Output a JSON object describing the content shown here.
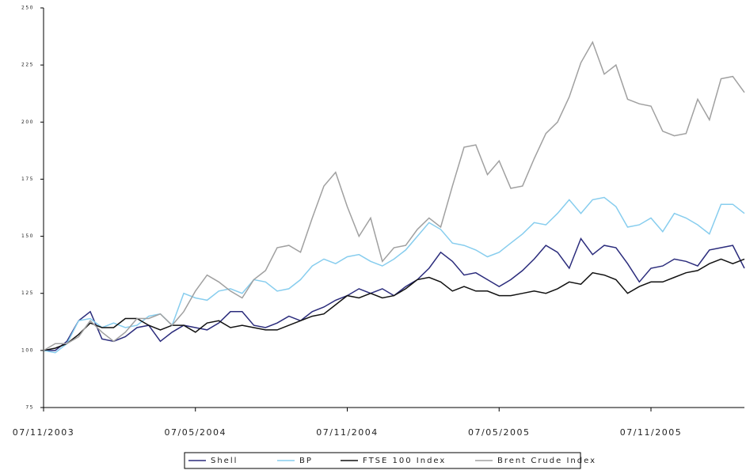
{
  "chart_data": {
    "type": "line",
    "categories": [
      "07/11/2003",
      null,
      null,
      null,
      null,
      null,
      null,
      null,
      null,
      null,
      null,
      null,
      null,
      "07/05/2004",
      null,
      null,
      null,
      null,
      null,
      null,
      null,
      null,
      null,
      null,
      null,
      null,
      "07/11/2004",
      null,
      null,
      null,
      null,
      null,
      null,
      null,
      null,
      null,
      null,
      null,
      null,
      "07/05/2005",
      null,
      null,
      null,
      null,
      null,
      null,
      null,
      null,
      null,
      null,
      null,
      null,
      "07/11/2005",
      null,
      null,
      null,
      null,
      null,
      null,
      null,
      null
    ],
    "series": [
      {
        "name": "Shell",
        "color": "#2b2c7c",
        "values": [
          100,
          100,
          104,
          113,
          117,
          105,
          104,
          106,
          110,
          111,
          104,
          108,
          111,
          110,
          109,
          112,
          117,
          117,
          111,
          110,
          112,
          115,
          113,
          117,
          119,
          122,
          124,
          127,
          125,
          127,
          124,
          128,
          131,
          136,
          143,
          139,
          133,
          134,
          131,
          128,
          131,
          135,
          140,
          146,
          143,
          136,
          149,
          142,
          146,
          145,
          138,
          130,
          136,
          137,
          140,
          139,
          137,
          144,
          145,
          146,
          136
        ]
      },
      {
        "name": "BP",
        "color": "#87cdee",
        "values": [
          100,
          99,
          103,
          113,
          114,
          110,
          112,
          110,
          111,
          115,
          116,
          111,
          125,
          123,
          122,
          126,
          127,
          125,
          131,
          130,
          126,
          127,
          131,
          137,
          140,
          138,
          141,
          142,
          139,
          137,
          140,
          144,
          150,
          156,
          153,
          147,
          146,
          144,
          141,
          143,
          147,
          151,
          156,
          155,
          160,
          166,
          160,
          166,
          167,
          163,
          154,
          155,
          158,
          152,
          160,
          158,
          155,
          151,
          164,
          164,
          160
        ]
      },
      {
        "name": "FTSE 100 Index",
        "color": "#111111",
        "values": [
          100,
          101,
          103,
          107,
          112,
          110,
          110,
          114,
          114,
          111,
          109,
          111,
          111,
          108,
          112,
          113,
          110,
          111,
          110,
          109,
          109,
          111,
          113,
          115,
          116,
          120,
          124,
          123,
          125,
          123,
          124,
          127,
          131,
          132,
          130,
          126,
          128,
          126,
          126,
          124,
          124,
          125,
          126,
          125,
          127,
          130,
          129,
          134,
          133,
          131,
          125,
          128,
          130,
          130,
          132,
          134,
          135,
          138,
          140,
          138,
          140
        ]
      },
      {
        "name": "Brent Crude Index",
        "color": "#a0a0a0",
        "values": [
          100,
          103,
          103,
          106,
          113,
          108,
          104,
          108,
          114,
          114,
          116,
          111,
          117,
          126,
          133,
          130,
          126,
          123,
          131,
          135,
          145,
          146,
          143,
          158,
          172,
          178,
          163,
          150,
          158,
          139,
          145,
          146,
          153,
          158,
          154,
          172,
          189,
          190,
          177,
          183,
          171,
          172,
          184,
          195,
          200,
          211,
          226,
          235,
          221,
          225,
          210,
          208,
          207,
          196,
          194,
          195,
          210,
          201,
          219,
          220,
          213
        ]
      }
    ],
    "ylim": [
      75,
      250
    ],
    "yticks": [
      75,
      100,
      125,
      150,
      175,
      200,
      225,
      250
    ],
    "grid": false,
    "legend": "bottom"
  }
}
